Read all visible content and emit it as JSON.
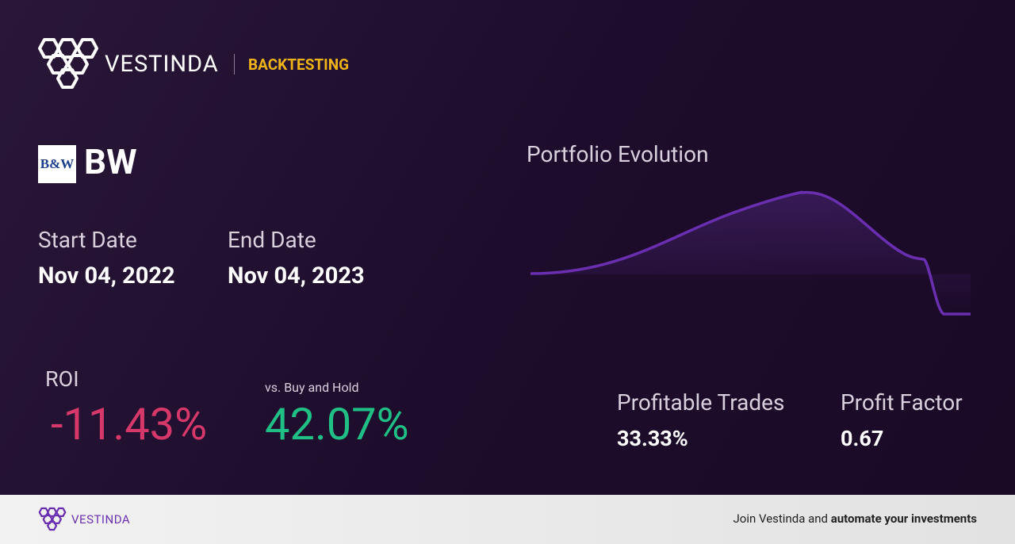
{
  "header": {
    "brand": "VESTINDA",
    "section": "BACKTESTING"
  },
  "asset": {
    "logo_text": "B&W",
    "ticker": "BW"
  },
  "dates": {
    "start_label": "Start Date",
    "start_value": "Nov 04, 2022",
    "end_label": "End Date",
    "end_value": "Nov 04, 2023"
  },
  "portfolio_chart": {
    "title": "Portfolio Evolution"
  },
  "roi": {
    "label": "ROI",
    "value": "-11.43%",
    "compare_label": "vs. Buy and Hold",
    "compare_value": "42.07%"
  },
  "stats": [
    {
      "label": "Profitable Trades",
      "value": "33.33%"
    },
    {
      "label": "Profit Factor",
      "value": "0.67"
    }
  ],
  "footer": {
    "brand": "VESTINDA",
    "tagline_start": "Join Vestinda and",
    "tagline_bold": "automate your investments"
  }
}
